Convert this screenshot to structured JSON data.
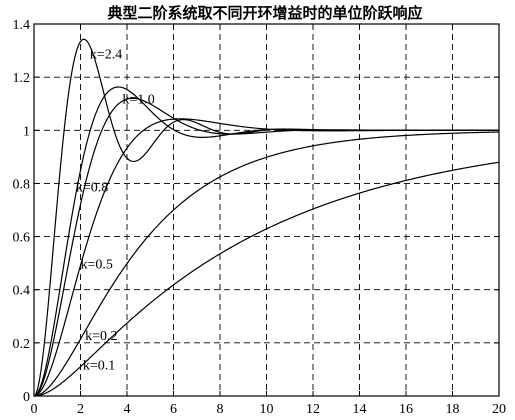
{
  "chart_data": {
    "type": "line",
    "title": "典型二阶系统取不同开环增益时的单位阶跃响应",
    "xlabel": "",
    "ylabel": "",
    "xlim": [
      0,
      20
    ],
    "ylim": [
      0,
      1.4
    ],
    "grid": true,
    "x_ticks": [
      "0",
      "2",
      "4",
      "6",
      "8",
      "10",
      "12",
      "14",
      "16",
      "18",
      "20"
    ],
    "y_ticks": [
      "0",
      "0.2",
      "0.4",
      "0.6",
      "0.8",
      "1",
      "1.2",
      "1.4"
    ],
    "series": [
      {
        "name": "k=2.4",
        "k": 2.4,
        "annotation_at": [
          2.4,
          1.27
        ]
      },
      {
        "name": "k=1.0",
        "k": 1.0,
        "annotation_at": [
          3.8,
          1.1
        ]
      },
      {
        "name": "k=0.8",
        "k": 0.8,
        "annotation_at": [
          1.8,
          0.77
        ]
      },
      {
        "name": "k=0.5",
        "k": 0.5,
        "annotation_at": [
          2.0,
          0.48
        ]
      },
      {
        "name": "k=0.2",
        "k": 0.2,
        "annotation_at": [
          2.2,
          0.21
        ]
      },
      {
        "name": "k=0.1",
        "k": 0.1,
        "annotation_at": [
          2.1,
          0.1
        ]
      }
    ]
  }
}
